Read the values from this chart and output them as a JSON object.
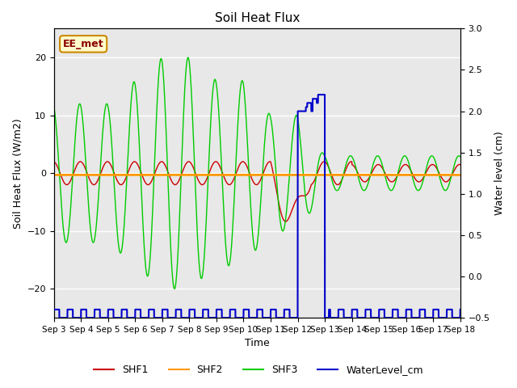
{
  "title": "Soil Heat Flux",
  "ylabel_left": "Soil Heat Flux (W/m2)",
  "ylabel_right": "Water level (cm)",
  "xlabel": "Time",
  "ylim_left": [
    -25,
    25
  ],
  "ylim_right": [
    -0.5,
    3.0
  ],
  "background_color": "#e8e8e8",
  "grid_color": "white",
  "series_colors": {
    "SHF1": "#cc0000",
    "SHF2": "#ff9900",
    "SHF3": "#00cc00",
    "WaterLevel": "#0000cc"
  },
  "ee_met_box": {
    "text": "EE_met",
    "text_color": "#8b0000",
    "bg_color": "#ffffcc",
    "border_color": "#cc8800"
  },
  "legend_labels": [
    "SHF1",
    "SHF2",
    "SHF3",
    "WaterLevel_cm"
  ],
  "x_ticks": [
    "Sep 3",
    "Sep 4",
    "Sep 5",
    "Sep 6",
    "Sep 7",
    "Sep 8",
    "Sep 9",
    "Sep 10",
    "Sep 11",
    "Sep 12",
    "Sep 13",
    "Sep 14",
    "Sep 15",
    "Sep 16",
    "Sep 17",
    "Sep 18"
  ]
}
